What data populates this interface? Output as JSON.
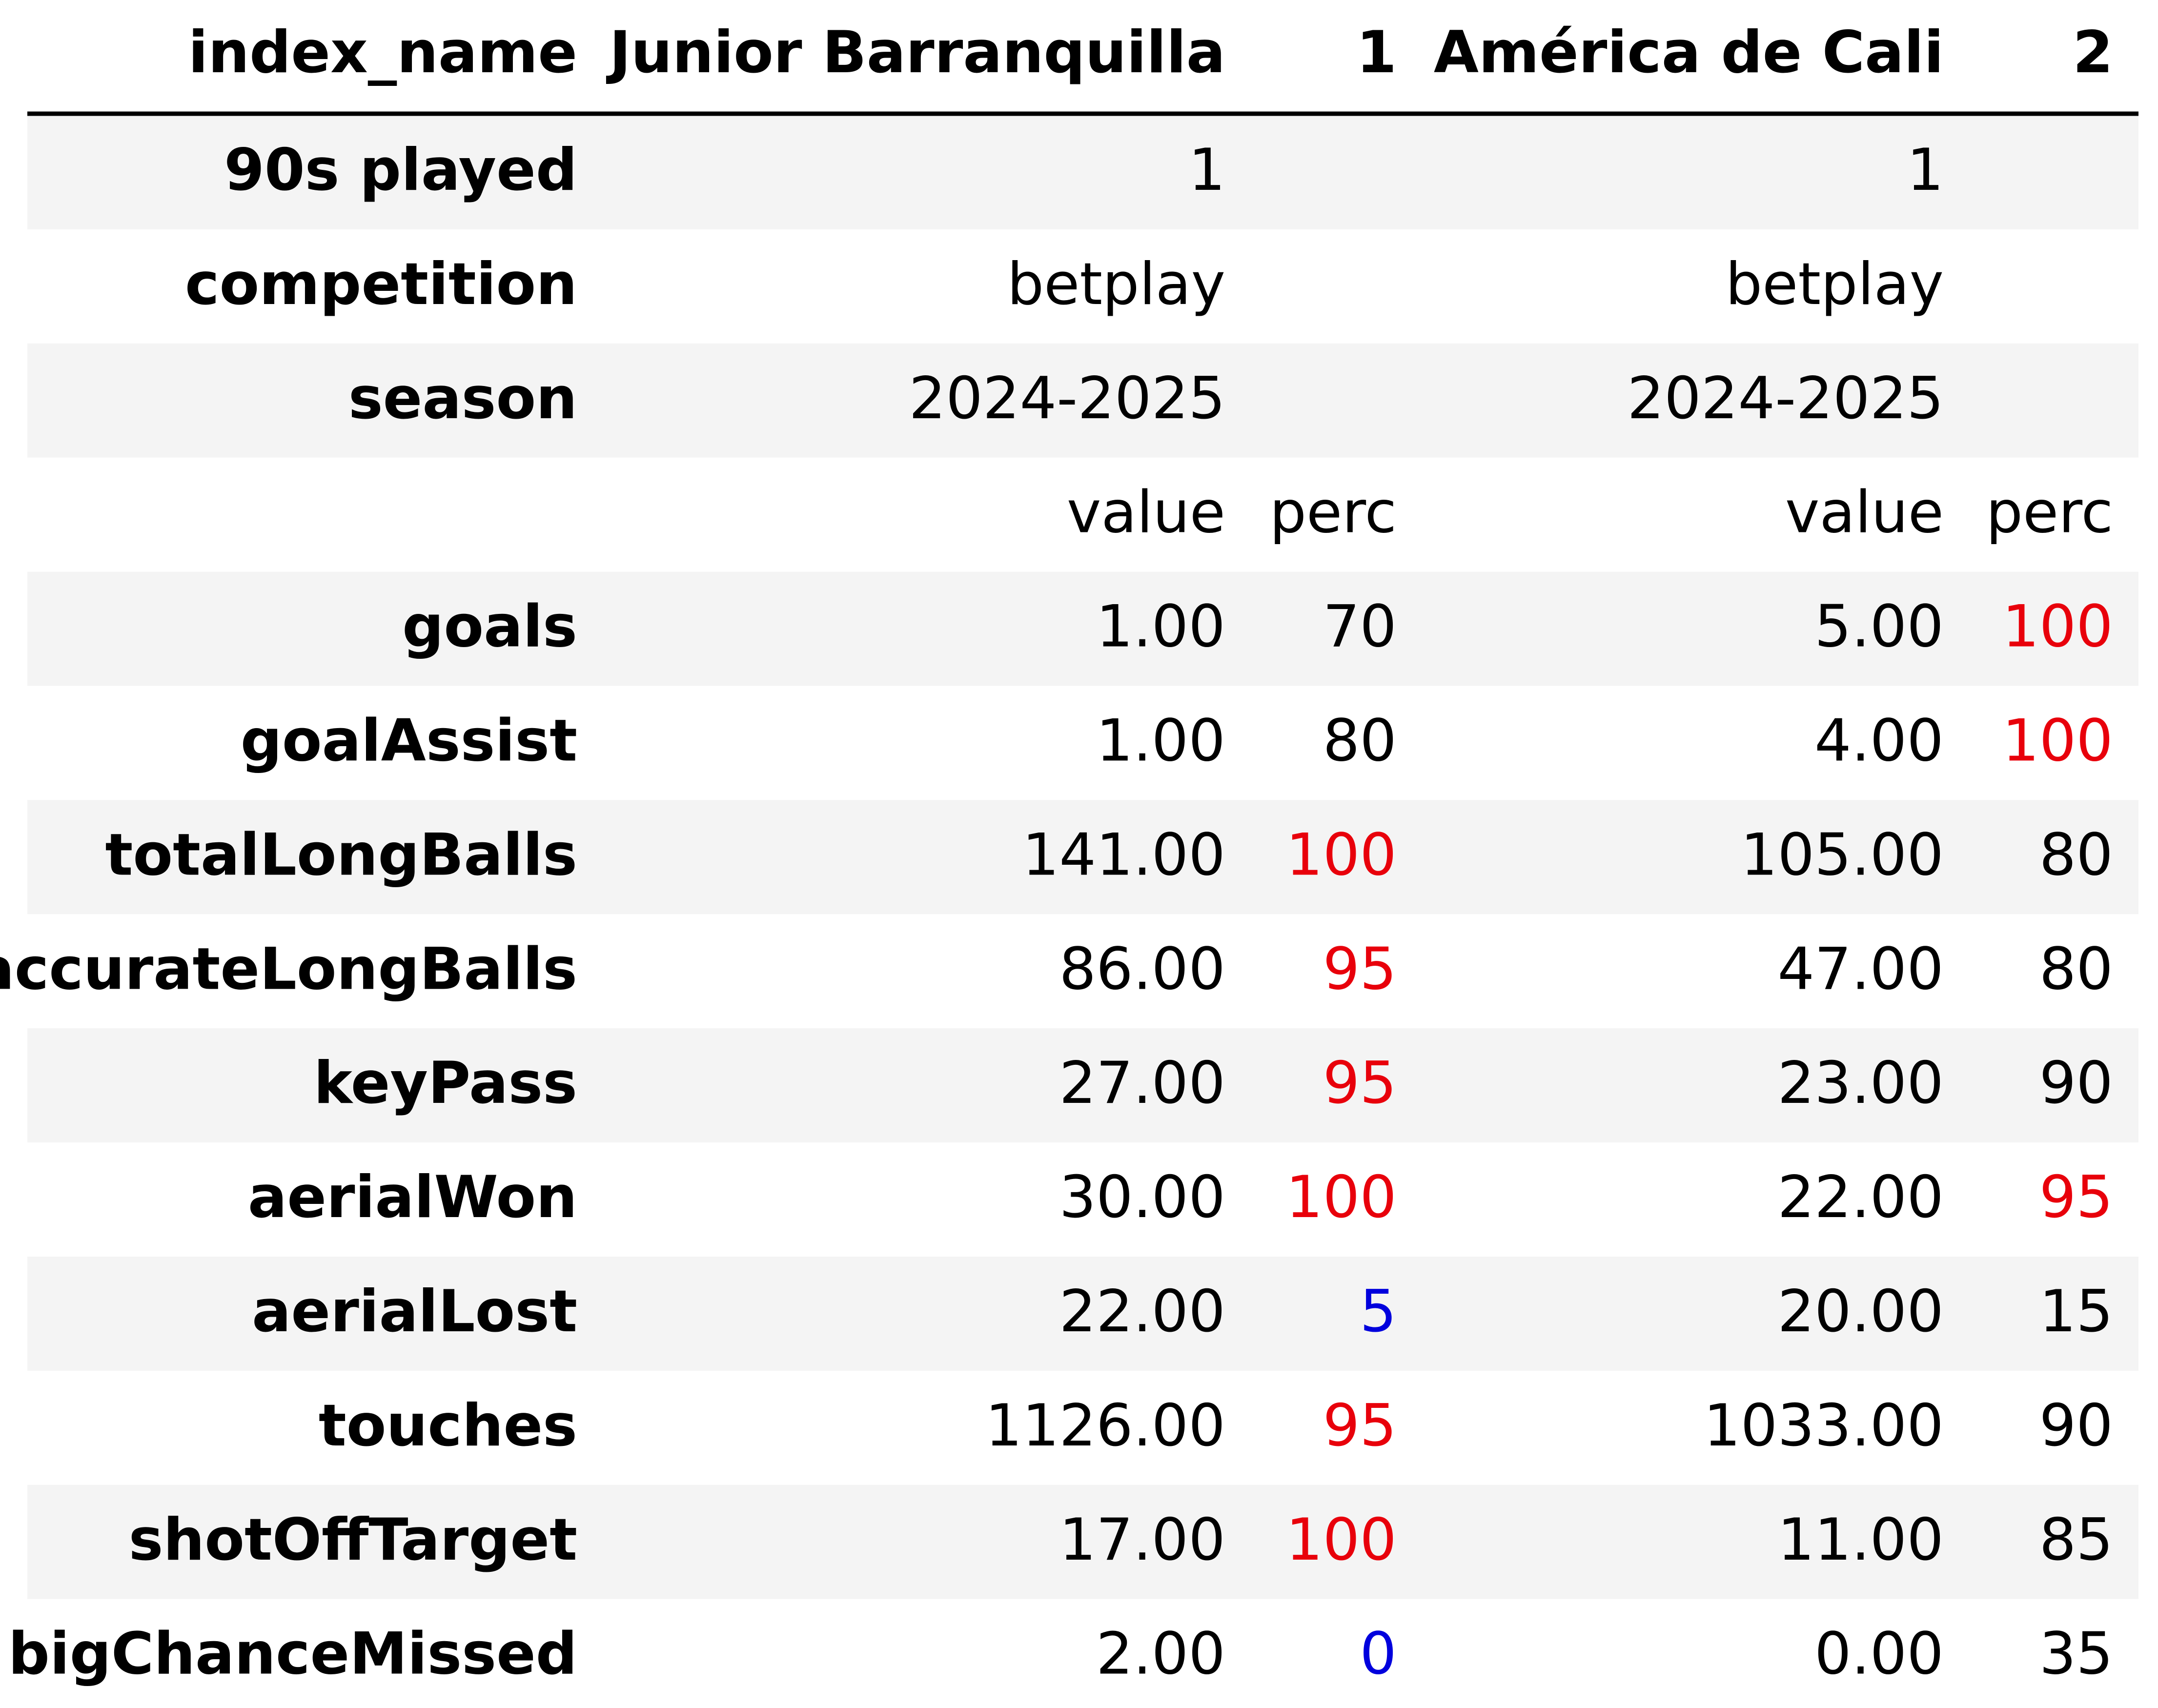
{
  "chart_data": {
    "type": "table",
    "header": {
      "index_label": "index_name",
      "columns": [
        "Junior Barranquilla",
        "1",
        "América de Cali",
        "2"
      ]
    },
    "meta_rows": [
      {
        "label": "90s played",
        "values": [
          "1",
          "",
          "1",
          ""
        ]
      },
      {
        "label": "competition",
        "values": [
          "betplay",
          "",
          "betplay",
          ""
        ]
      },
      {
        "label": "season",
        "values": [
          "2024-2025",
          "",
          "2024-2025",
          ""
        ]
      },
      {
        "label": "",
        "values": [
          "value",
          "perc",
          "value",
          "perc"
        ]
      }
    ],
    "stat_rows": [
      {
        "label": "goals",
        "values": [
          "1.00",
          "70",
          "5.00",
          "100"
        ]
      },
      {
        "label": "goalAssist",
        "values": [
          "1.00",
          "80",
          "4.00",
          "100"
        ]
      },
      {
        "label": "totalLongBalls",
        "values": [
          "141.00",
          "100",
          "105.00",
          "80"
        ]
      },
      {
        "label": "accurateLongBalls",
        "values": [
          "86.00",
          "95",
          "47.00",
          "80"
        ]
      },
      {
        "label": "keyPass",
        "values": [
          "27.00",
          "95",
          "23.00",
          "90"
        ]
      },
      {
        "label": "aerialWon",
        "values": [
          "30.00",
          "100",
          "22.00",
          "95"
        ]
      },
      {
        "label": "aerialLost",
        "values": [
          "22.00",
          "5",
          "20.00",
          "15"
        ]
      },
      {
        "label": "touches",
        "values": [
          "1126.00",
          "95",
          "1033.00",
          "90"
        ]
      },
      {
        "label": "shotOffTarget",
        "values": [
          "17.00",
          "100",
          "11.00",
          "85"
        ]
      },
      {
        "label": "bigChanceMissed",
        "values": [
          "2.00",
          "0",
          "0.00",
          "35"
        ]
      }
    ],
    "highlight_rules": {
      "high_min": 95,
      "low_max": 5
    },
    "colors": {
      "text": "#000000",
      "high": "#e8000b",
      "low": "#0000dd",
      "stripe": "#f4f4f4",
      "background": "#ffffff",
      "rule": "#000000"
    }
  }
}
